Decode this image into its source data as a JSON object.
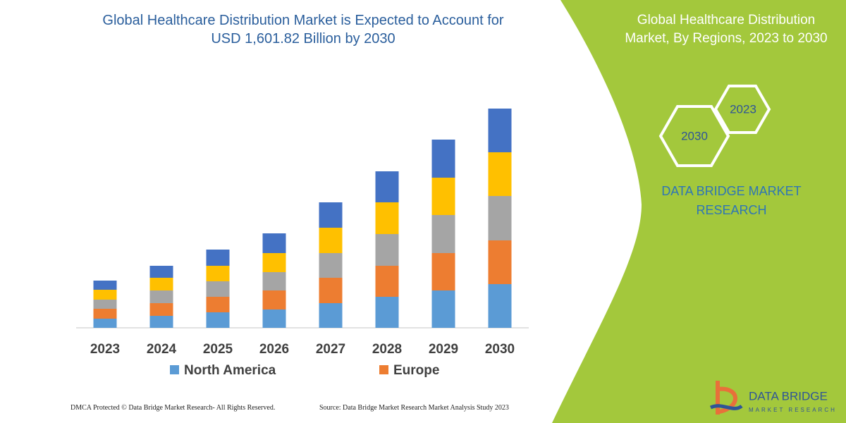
{
  "chart_data": {
    "type": "stacked-bar",
    "title": "Global Healthcare Distribution Market is Expected to Account for USD 1,601.82 Billion by 2030",
    "categories": [
      "2023",
      "2024",
      "2025",
      "2026",
      "2027",
      "2028",
      "2029",
      "2030"
    ],
    "series": [
      {
        "name": "North America",
        "color": "#5b9bd5",
        "values": [
          13,
          17,
          22,
          26,
          35,
          44,
          53,
          62
        ]
      },
      {
        "name": "Europe",
        "color": "#ed7d31",
        "values": [
          14,
          18,
          22,
          27,
          36,
          44,
          53,
          62
        ]
      },
      {
        "color": "#a5a5a5",
        "values": [
          13,
          18,
          22,
          26,
          35,
          45,
          54,
          63
        ]
      },
      {
        "color": "#ffc000",
        "values": [
          14,
          18,
          22,
          27,
          36,
          45,
          53,
          62
        ]
      },
      {
        "color": "#4472c4",
        "values": [
          13,
          17,
          23,
          28,
          36,
          44,
          54,
          62
        ]
      }
    ],
    "ylim": [
      0,
      320
    ]
  },
  "side_panel": {
    "title": "Global Healthcare Distribution Market, By Regions, 2023 to 2030",
    "badges": [
      "2023",
      "2030"
    ],
    "brand": "DATA BRIDGE MARKET RESEARCH"
  },
  "logo": {
    "name": "DATA BRIDGE",
    "tagline": "MARKET RESEARCH"
  },
  "footer": {
    "copyright": "DMCA Protected © Data Bridge Market Research- All Rights Reserved.",
    "source": "Source: Data Bridge Market Research  Market Analysis Study 2023"
  }
}
